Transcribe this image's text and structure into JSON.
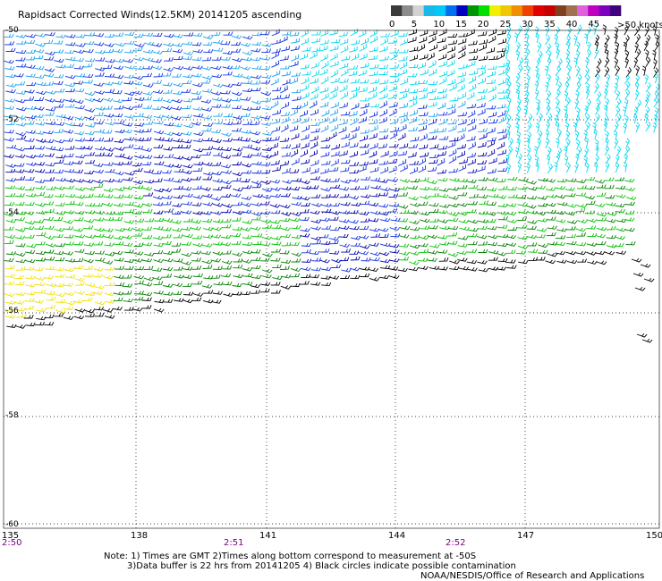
{
  "title": "Rapidsact Corrected Winds(12.5KM) 20141205 ascending",
  "legend": {
    "unit_label": ">50 knots",
    "tick_labels": [
      "0",
      "5",
      "10",
      "15",
      "20",
      "25",
      "30",
      "35",
      "40",
      "45"
    ],
    "swatch_colors": [
      "#3a3a3a",
      "#8c8c8c",
      "#d2d2d2",
      "#18b8e8",
      "#00c8f8",
      "#0070f0",
      "#0000c0",
      "#009600",
      "#00e000",
      "#f0f000",
      "#f0c800",
      "#f09000",
      "#f04000",
      "#e00000",
      "#c80000",
      "#804020",
      "#a07050",
      "#e060e0",
      "#c000c0",
      "#8000c0",
      "#400080"
    ]
  },
  "lat_labels": [
    "-50",
    "-52",
    "-54",
    "-56",
    "-58",
    "-60"
  ],
  "lon_labels": [
    "135",
    "138",
    "141",
    "144",
    "147",
    "150"
  ],
  "time_labels": [
    "2:50",
    "2:51",
    "2:52"
  ],
  "notes": [
    "Note: 1) Times are GMT 2)Times along bottom correspond to measurement at -50S",
    "3)Data buffer is 22 hrs from 20141205 4) Black circles indicate possible contamination",
    "NOAA/NESDIS/Office of Research and Applications"
  ],
  "speed_colors": {
    "light": "#00d8f0",
    "sky": "#18a0f0",
    "blue": "#1030e0",
    "navy": "#0000b0",
    "green_dark": "#008000",
    "green": "#00c000",
    "yellow": "#f0e000",
    "black": "#000000"
  }
}
